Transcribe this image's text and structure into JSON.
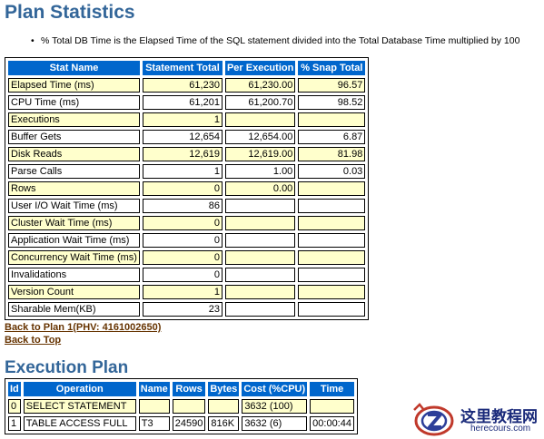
{
  "heading": "Plan Statistics",
  "note": "% Total DB Time is the Elapsed Time of the SQL statement divided into the Total Database Time multiplied by 100",
  "stats": {
    "columns": [
      "Stat Name",
      "Statement Total",
      "Per Execution",
      "% Snap Total"
    ],
    "rows": [
      [
        "Elapsed Time (ms)",
        "61,230",
        "61,230.00",
        "96.57"
      ],
      [
        "CPU Time (ms)",
        "61,201",
        "61,200.70",
        "98.52"
      ],
      [
        "Executions",
        "1",
        "",
        ""
      ],
      [
        "Buffer Gets",
        "12,654",
        "12,654.00",
        "6.87"
      ],
      [
        "Disk Reads",
        "12,619",
        "12,619.00",
        "81.98"
      ],
      [
        "Parse Calls",
        "1",
        "1.00",
        "0.03"
      ],
      [
        "Rows",
        "0",
        "0.00",
        ""
      ],
      [
        "User I/O Wait Time (ms)",
        "86",
        "",
        ""
      ],
      [
        "Cluster Wait Time (ms)",
        "0",
        "",
        ""
      ],
      [
        "Application Wait Time (ms)",
        "0",
        "",
        ""
      ],
      [
        "Concurrency Wait Time (ms)",
        "0",
        "",
        ""
      ],
      [
        "Invalidations",
        "0",
        "",
        ""
      ],
      [
        "Version Count",
        "1",
        "",
        ""
      ],
      [
        "Sharable Mem(KB)",
        "23",
        "",
        ""
      ]
    ]
  },
  "links": {
    "back_to_plan": "Back to Plan 1(PHV: 4161002650)",
    "back_to_top": "Back to Top"
  },
  "plan_heading": "Execution Plan",
  "plan": {
    "columns": [
      "Id",
      "Operation",
      "Name",
      "Rows",
      "Bytes",
      "Cost (%CPU)",
      "Time"
    ],
    "rows": [
      [
        "0",
        "SELECT STATEMENT",
        "",
        "",
        "",
        "3632 (100)",
        ""
      ],
      [
        "1",
        "TABLE ACCESS FULL",
        "T3",
        "24590",
        "816K",
        "3632 (6)",
        "00:00:44"
      ]
    ]
  },
  "watermark": {
    "cn": "这里教程网",
    "en": "herecours.com"
  },
  "colors": {
    "heading": "#336699",
    "header_bg": "#0066cc",
    "odd_row": "#ffffcc",
    "link": "#663300"
  }
}
